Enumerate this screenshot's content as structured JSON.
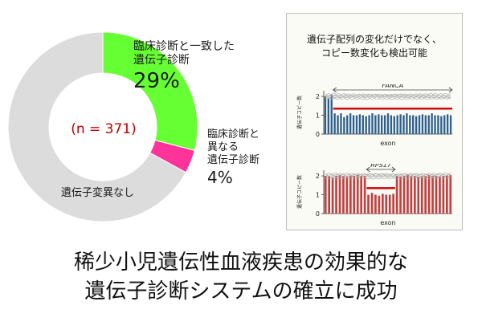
{
  "chart_data": [
    {
      "type": "pie",
      "slices": [
        {
          "label": "臨床診断と一致した遺伝子診断",
          "value": 29,
          "color": "#66ff33"
        },
        {
          "label": "臨床診断と異なる遺伝子診断",
          "value": 4,
          "color": "#ff3399"
        },
        {
          "label": "遺伝子変異なし",
          "value": 67,
          "color": "#dcdcdc"
        }
      ],
      "annotation": "(n = 371)",
      "labels": {
        "match_l1": "臨床診断と一致した",
        "match_l2": "遺伝子診断",
        "match_pct": "29%",
        "diff_l1": "臨床診断と",
        "diff_l2": "異なる",
        "diff_l3": "遺伝子診断",
        "diff_pct": "4%",
        "none": "遺伝子変異なし"
      }
    },
    {
      "type": "bar",
      "gene": "FANCA",
      "ylabel": "遺伝子コピー数",
      "xlabel": "exon",
      "yticks": [
        0,
        1,
        2
      ],
      "ylim": [
        0,
        2.3
      ],
      "bar_color": "#2e5f8c",
      "deletion_line": {
        "value": 1.35,
        "color": "#cc0000"
      },
      "values": [
        2.0,
        1.9,
        2.1,
        1.1,
        1.0,
        1.1,
        0.9,
        1.0,
        1.1,
        1.0,
        1.0,
        1.05,
        1.0,
        0.95,
        1.0,
        1.1,
        1.0,
        1.05,
        1.0,
        1.0,
        1.1,
        1.0,
        0.95,
        1.0,
        1.05,
        1.0,
        1.1,
        1.0,
        1.0,
        0.95,
        1.0,
        1.05,
        1.0,
        1.0,
        1.1,
        1.0,
        1.0,
        0.95,
        1.0,
        1.05,
        1.0
      ]
    },
    {
      "type": "bar",
      "gene": "RPS17",
      "ylabel": "遺伝子コピー数",
      "xlabel": "exon",
      "yticks": [
        0,
        1,
        2
      ],
      "ylim": [
        0,
        2.3
      ],
      "bar_color": "#c04040",
      "deletion_line": {
        "value": 1.35,
        "color": "#cc0000"
      },
      "values": [
        2.0,
        2.0,
        1.9,
        2.0,
        2.05,
        2.0,
        1.95,
        2.0,
        2.0,
        2.05,
        2.0,
        2.0,
        1.0,
        1.1,
        1.0,
        0.95,
        1.05,
        1.0,
        1.0,
        1.05,
        2.0,
        1.95,
        2.0,
        2.05,
        2.0,
        2.0,
        1.95,
        2.0,
        2.0,
        2.05,
        2.0,
        2.0,
        1.95,
        2.0,
        2.0,
        2.05
      ]
    }
  ],
  "panel": {
    "title_l1": "遺伝子配列の変化だけでなく、",
    "title_l2": "コピー数変化も検出可能"
  },
  "caption": {
    "line1": "稀少小児遺伝性血液疾患の効果的な",
    "line2": "遺伝子診断システムの確立に成功"
  }
}
